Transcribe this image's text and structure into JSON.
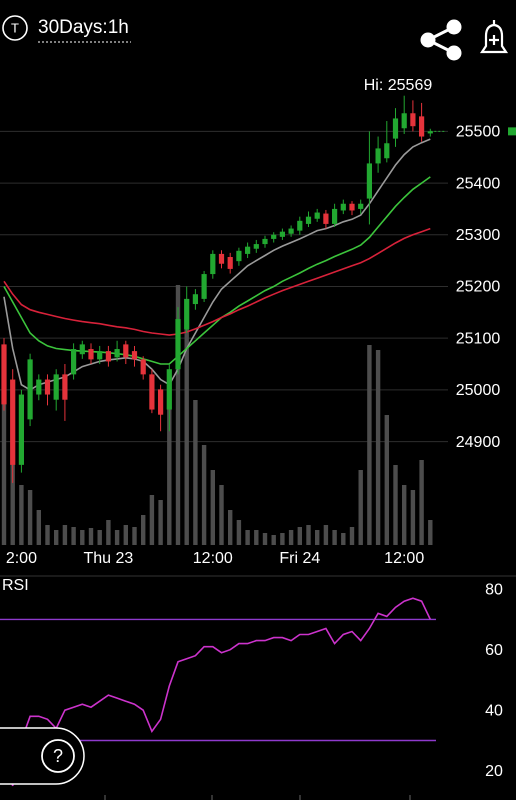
{
  "ui": {
    "avatar_letter": "T",
    "help": "?"
  },
  "chart_data": [
    {
      "type": "candlestick",
      "title": "30Days:1h",
      "high_label": "Hi: 25569",
      "categories": [
        null,
        null,
        "2:00",
        null,
        null,
        null,
        null,
        null,
        null,
        null,
        null,
        null,
        "Thu 23",
        null,
        null,
        null,
        null,
        null,
        null,
        null,
        null,
        null,
        null,
        null,
        "12:00",
        null,
        null,
        null,
        null,
        null,
        null,
        null,
        null,
        null,
        "Fri 24",
        null,
        null,
        null,
        null,
        null,
        null,
        null,
        null,
        null,
        null,
        null,
        "12:00",
        null,
        null,
        null
      ],
      "open": [
        25088,
        25020,
        24855,
        24943,
        24991,
        25020,
        24981,
        25030,
        25030,
        25069,
        25079,
        25059,
        25075,
        25063,
        25088,
        25075,
        25059,
        25030,
        25001,
        24962,
        25040,
        25117,
        25166,
        25176,
        25224,
        25263,
        25257,
        25249,
        25263,
        25273,
        25282,
        25292,
        25296,
        25302,
        25308,
        25321,
        25331,
        25341,
        25321,
        25347,
        25360,
        25350,
        25370,
        25438,
        25448,
        25486,
        25506,
        25535,
        25529,
        25496
      ],
      "high": [
        25100,
        25040,
        25000,
        25070,
        25030,
        25030,
        25040,
        25050,
        25090,
        25095,
        25090,
        25085,
        25085,
        25095,
        25095,
        25085,
        25065,
        25040,
        25010,
        25050,
        25160,
        25200,
        25195,
        25230,
        25270,
        25270,
        25265,
        25275,
        25285,
        25290,
        25298,
        25305,
        25312,
        25318,
        25335,
        25345,
        25350,
        25348,
        25360,
        25368,
        25365,
        25368,
        25500,
        25490,
        25520,
        25545,
        25569,
        25560,
        25555,
        25505
      ],
      "low": [
        24960,
        24820,
        24840,
        24930,
        24980,
        24970,
        24960,
        24940,
        25020,
        25060,
        25050,
        25050,
        25045,
        25055,
        25050,
        25045,
        25020,
        24955,
        24920,
        24920,
        25030,
        25110,
        25155,
        25170,
        25215,
        25235,
        25225,
        25240,
        25255,
        25265,
        25275,
        25285,
        25290,
        25296,
        25300,
        25315,
        25325,
        25312,
        25315,
        25340,
        25338,
        25340,
        25320,
        25420,
        25440,
        25470,
        25495,
        25500,
        25480,
        25490
      ],
      "close": [
        24972,
        24855,
        24991,
        25059,
        25020,
        24991,
        25030,
        24981,
        25079,
        25088,
        25059,
        25075,
        25055,
        25079,
        25063,
        25059,
        25030,
        24962,
        24952,
        25040,
        25137,
        25176,
        25185,
        25224,
        25263,
        25244,
        25234,
        25269,
        25277,
        25282,
        25292,
        25300,
        25306,
        25312,
        25327,
        25335,
        25343,
        25321,
        25350,
        25360,
        25347,
        25360,
        25438,
        25467,
        25477,
        25525,
        25535,
        25510,
        25490,
        25500
      ],
      "up_color": "#22a831",
      "down_color": "#e5333b",
      "volume": {
        "color": "#4d4d4d",
        "lim": [
          0,
          455
        ],
        "values": [
          190,
          140,
          60,
          55,
          35,
          20,
          15,
          20,
          18,
          15,
          17,
          15,
          25,
          15,
          20,
          18,
          30,
          50,
          45,
          170,
          260,
          220,
          145,
          100,
          75,
          60,
          35,
          25,
          15,
          15,
          12,
          10,
          12,
          15,
          18,
          20,
          15,
          20,
          15,
          12,
          18,
          75,
          200,
          195,
          130,
          80,
          60,
          55,
          85,
          25
        ]
      },
      "overlays": [
        {
          "color": "#9a9a9a",
          "values": [
            25180,
            25080,
            25010,
            25000,
            25010,
            25015,
            25020,
            25025,
            25035,
            25045,
            25050,
            25055,
            25058,
            25060,
            25062,
            25060,
            25055,
            25040,
            25020,
            25010,
            25040,
            25080,
            25110,
            25140,
            25170,
            25195,
            25210,
            25225,
            25240,
            25250,
            25260,
            25270,
            25278,
            25285,
            25292,
            25300,
            25308,
            25312,
            25318,
            25325,
            25330,
            25338,
            25360,
            25385,
            25410,
            25435,
            25455,
            25470,
            25478,
            25485
          ]
        },
        {
          "color": "#3cc43c",
          "values": [
            25200,
            25170,
            25140,
            25110,
            25095,
            25085,
            25080,
            25078,
            25076,
            25075,
            25074,
            25073,
            25072,
            25070,
            25068,
            25065,
            25060,
            25055,
            25050,
            25050,
            25065,
            25080,
            25095,
            25110,
            25125,
            25140,
            25150,
            25162,
            25172,
            25182,
            25192,
            25200,
            25210,
            25218,
            25226,
            25235,
            25243,
            25250,
            25258,
            25265,
            25272,
            25280,
            25295,
            25315,
            25335,
            25355,
            25372,
            25388,
            25400,
            25412
          ]
        },
        {
          "color": "#d8223a",
          "values": [
            25210,
            25185,
            25165,
            25155,
            25150,
            25146,
            25142,
            25138,
            25135,
            25132,
            25130,
            25128,
            25125,
            25122,
            25120,
            25117,
            25113,
            25110,
            25108,
            25106,
            25108,
            25112,
            25118,
            25125,
            25132,
            25140,
            25147,
            25155,
            25162,
            25170,
            25178,
            25185,
            25192,
            25198,
            25204,
            25210,
            25216,
            25222,
            25228,
            25234,
            25240,
            25246,
            25254,
            25264,
            25274,
            25284,
            25293,
            25300,
            25306,
            25312
          ]
        }
      ],
      "ylim": [
        24700,
        25580
      ],
      "yticks": [
        24900,
        25000,
        25100,
        25200,
        25300,
        25400,
        25500
      ],
      "grid": true
    },
    {
      "type": "line",
      "title": "RSI",
      "color": "#cc33cc",
      "level_color": "#8e3acc",
      "values": [
        25,
        15,
        30,
        38,
        38,
        37,
        34,
        40,
        41,
        42,
        41,
        43,
        45,
        44,
        43,
        42,
        40,
        33,
        37,
        48,
        56,
        57,
        58,
        61,
        61,
        59,
        60,
        62,
        62,
        63,
        63,
        64,
        64,
        63,
        65,
        65,
        66,
        67,
        62,
        65,
        66,
        63,
        67,
        72,
        71,
        74,
        76,
        77,
        76,
        70
      ],
      "levels": [
        70,
        30
      ],
      "ylim": [
        12,
        85
      ],
      "yticks": [
        20,
        40,
        60,
        80
      ]
    }
  ]
}
